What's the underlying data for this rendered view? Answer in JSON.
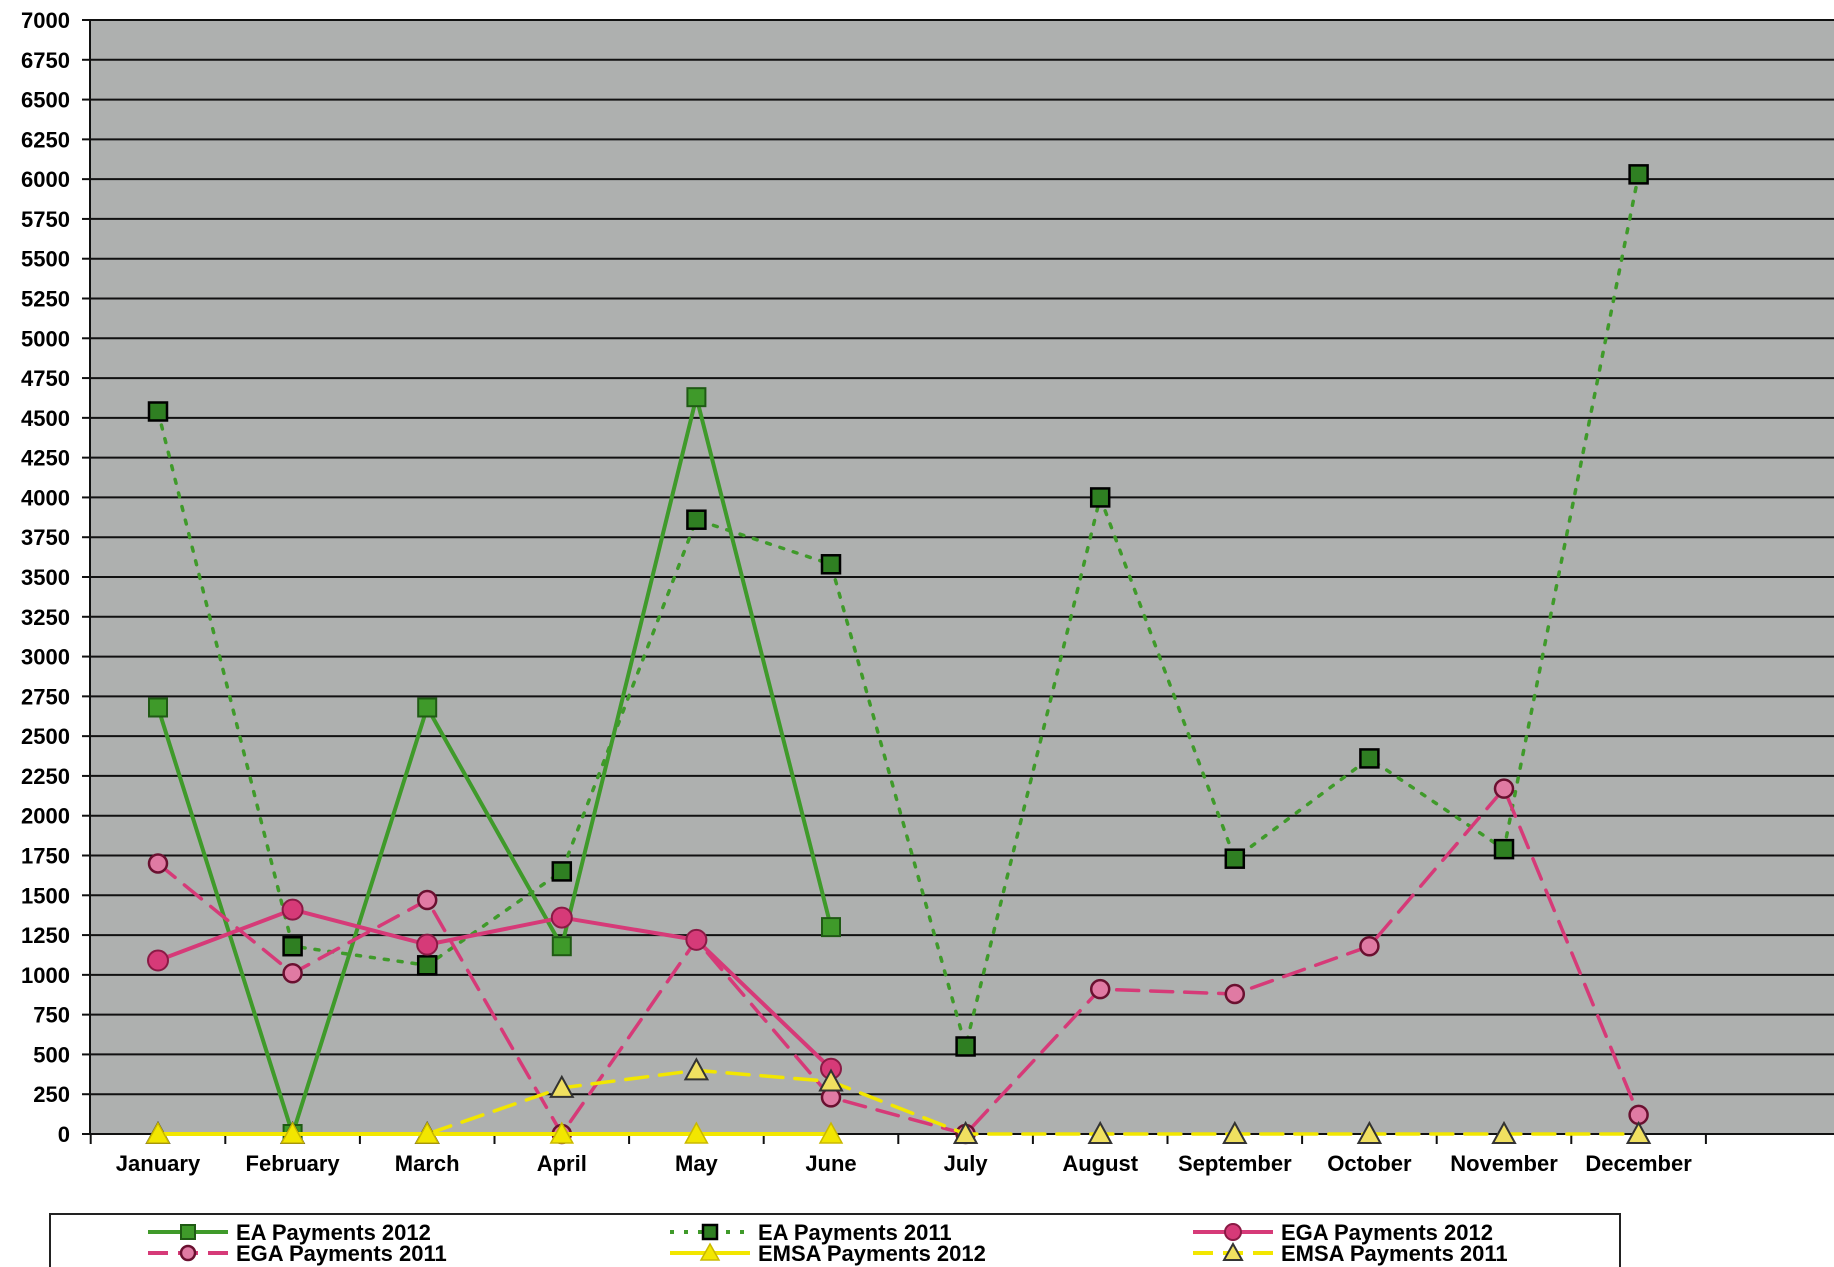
{
  "chart_data": {
    "type": "line",
    "title": "",
    "xlabel": "",
    "ylabel": "",
    "ylim": [
      0,
      7000
    ],
    "ytick_step": 250,
    "grid": true,
    "legend_position": "bottom",
    "categories": [
      "January",
      "February",
      "March",
      "April",
      "May",
      "June",
      "July",
      "August",
      "September",
      "October",
      "November",
      "December"
    ],
    "series": [
      {
        "name": "EA Payments 2012",
        "color": "#3f9a2a",
        "style": "solid",
        "marker": "square",
        "values": [
          2680,
          0,
          2680,
          1180,
          4630,
          1300,
          null,
          null,
          null,
          null,
          null,
          null
        ]
      },
      {
        "name": "EA Payments 2011",
        "color": "#3f9a2a",
        "style": "dotted",
        "marker": "square-dark",
        "values": [
          4540,
          1180,
          1060,
          1650,
          3860,
          3580,
          550,
          4000,
          1730,
          2360,
          1790,
          6030
        ]
      },
      {
        "name": "EGA Payments 2012",
        "color": "#d63a78",
        "style": "solid",
        "marker": "circle-filled",
        "values": [
          1090,
          1410,
          1190,
          1360,
          1220,
          410,
          null,
          null,
          null,
          null,
          null,
          null
        ]
      },
      {
        "name": "EGA Payments 2011",
        "color": "#d63a78",
        "style": "dashed",
        "marker": "circle-open",
        "values": [
          1700,
          1010,
          1470,
          0,
          1220,
          230,
          0,
          910,
          880,
          1180,
          2170,
          120
        ]
      },
      {
        "name": "EMSA Payments 2012",
        "color": "#f2e600",
        "style": "solid",
        "marker": "triangle-filled",
        "values": [
          0,
          0,
          0,
          0,
          0,
          0,
          null,
          null,
          null,
          null,
          null,
          null
        ]
      },
      {
        "name": "EMSA Payments 2011",
        "color": "#f2e600",
        "style": "dashed",
        "marker": "triangle-open",
        "values": [
          0,
          0,
          0,
          290,
          400,
          330,
          0,
          0,
          0,
          0,
          0,
          0
        ]
      }
    ]
  }
}
